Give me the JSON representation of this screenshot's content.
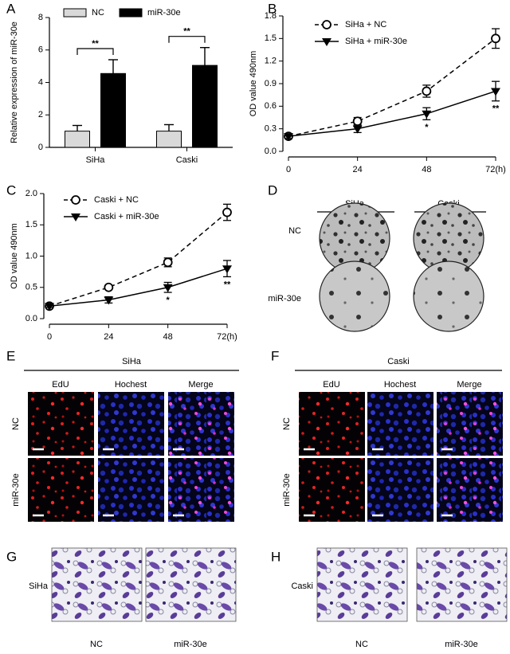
{
  "chart_data": [
    {
      "panel": "A",
      "type": "bar",
      "ylabel": "Relative expression of miR-30e",
      "categories": [
        "SiHa",
        "Caski"
      ],
      "series": [
        {
          "name": "NC",
          "color": "#d9d9d9",
          "values": [
            1,
            1
          ],
          "errors": [
            0.35,
            0.4
          ]
        },
        {
          "name": "miR-30e",
          "color": "#000000",
          "values": [
            4.55,
            5.05
          ],
          "errors": [
            0.85,
            1.1
          ]
        }
      ],
      "ylim": [
        0,
        8
      ],
      "yticks": [
        0,
        2,
        4,
        6,
        8
      ],
      "annotations": [
        {
          "text": "**",
          "x": "SiHa"
        },
        {
          "text": "**",
          "x": "Caski"
        }
      ]
    },
    {
      "panel": "B",
      "type": "line",
      "ylabel": "OD value 490nm",
      "x": [
        0,
        24,
        48,
        72
      ],
      "xlim": [
        0,
        72
      ],
      "xticks": [
        0,
        24,
        48,
        {
          "value": 72,
          "label": "72(h)"
        }
      ],
      "ylim": [
        0,
        1.8
      ],
      "yticks": [
        {
          "value": 0,
          "label": "0.0"
        },
        0.3,
        0.6,
        0.9,
        1.2,
        1.5,
        1.8
      ],
      "series": [
        {
          "name": "SiHa + NC",
          "color": "#000000",
          "dashed": true,
          "marker": "open-circle",
          "values": [
            0.2,
            0.4,
            0.8,
            1.5
          ],
          "errors": [
            0.03,
            0.05,
            0.08,
            0.13
          ]
        },
        {
          "name": "SiHa + miR-30e",
          "color": "#000000",
          "dashed": false,
          "marker": "triangle-down",
          "values": [
            0.2,
            0.3,
            0.5,
            0.8
          ],
          "errors": [
            0.03,
            0.05,
            0.08,
            0.13
          ]
        }
      ],
      "annotations": [
        {
          "text": "*",
          "x": 48
        },
        {
          "text": "**",
          "x": 72
        }
      ]
    },
    {
      "panel": "C",
      "type": "line",
      "ylabel": "OD value 490nm",
      "x": [
        0,
        24,
        48,
        72
      ],
      "xlim": [
        0,
        72
      ],
      "xticks": [
        0,
        24,
        48,
        {
          "value": 72,
          "label": "72(h)"
        }
      ],
      "ylim": [
        0,
        2
      ],
      "yticks": [
        {
          "value": 0,
          "label": "0.0"
        },
        0.5,
        {
          "value": 1,
          "label": "1.0"
        },
        1.5,
        {
          "value": 2,
          "label": "2.0"
        }
      ],
      "series": [
        {
          "name": "Caski + NC",
          "color": "#000000",
          "dashed": true,
          "marker": "open-circle",
          "values": [
            0.2,
            0.5,
            0.9,
            1.7
          ],
          "errors": [
            0.02,
            0.03,
            0.07,
            0.13
          ]
        },
        {
          "name": "Caski + miR-30e",
          "color": "#000000",
          "dashed": false,
          "marker": "triangle-down",
          "values": [
            0.2,
            0.3,
            0.5,
            0.8
          ],
          "errors": [
            0.02,
            0.05,
            0.08,
            0.13
          ]
        }
      ],
      "annotations": [
        {
          "text": "*",
          "x": 48
        },
        {
          "text": "**",
          "x": 72
        }
      ]
    }
  ],
  "panels": [
    {
      "panel": "D",
      "columns": [
        "SiHa",
        "Caski"
      ],
      "rows": [
        "NC",
        "miR-30e"
      ]
    },
    {
      "panel": "E",
      "title": "SiHa",
      "columns": [
        "EdU",
        "Hochest",
        "Merge"
      ],
      "rows": [
        "NC",
        "miR-30e"
      ]
    },
    {
      "panel": "F",
      "title": "Caski",
      "columns": [
        "EdU",
        "Hochest",
        "Merge"
      ],
      "rows": [
        "NC",
        "miR-30e"
      ]
    },
    {
      "panel": "G",
      "rows": [
        "SiHa"
      ],
      "columns": [
        "NC",
        "miR-30e"
      ]
    },
    {
      "panel": "H",
      "rows": [
        "Caski"
      ],
      "columns": [
        "NC",
        "miR-30e"
      ]
    }
  ]
}
